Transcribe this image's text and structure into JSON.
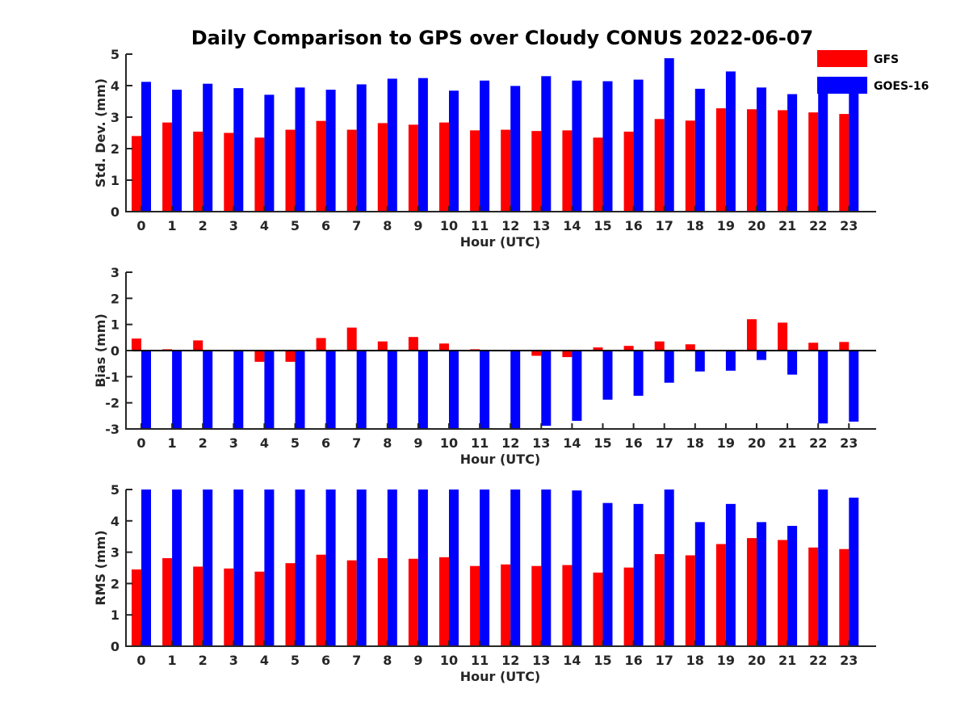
{
  "title": "Daily Comparison to GPS over Cloudy CONUS 2022-06-07",
  "legend": [
    {
      "name": "GFS",
      "color": "#ff0000"
    },
    {
      "name": "GOES-16",
      "color": "#0000ff"
    }
  ],
  "chart_data": [
    {
      "type": "bar",
      "xlabel": "Hour (UTC)",
      "ylabel": "Std. Dev. (mm)",
      "ylim": [
        0,
        5
      ],
      "yticks": [
        0,
        1,
        2,
        3,
        4,
        5
      ],
      "categories": [
        "0",
        "1",
        "2",
        "3",
        "4",
        "5",
        "6",
        "7",
        "8",
        "9",
        "10",
        "11",
        "12",
        "13",
        "14",
        "15",
        "16",
        "17",
        "18",
        "19",
        "20",
        "21",
        "22",
        "23"
      ],
      "series": [
        {
          "name": "GFS",
          "color": "#ff0000",
          "values": [
            2.4,
            2.83,
            2.54,
            2.5,
            2.35,
            2.6,
            2.88,
            2.6,
            2.81,
            2.76,
            2.83,
            2.58,
            2.6,
            2.56,
            2.58,
            2.35,
            2.54,
            2.94,
            2.89,
            3.28,
            3.25,
            3.22,
            3.15,
            3.1
          ]
        },
        {
          "name": "GOES-16",
          "color": "#0000ff",
          "values": [
            4.12,
            3.87,
            4.06,
            3.92,
            3.71,
            3.94,
            3.87,
            4.04,
            4.22,
            4.24,
            3.84,
            4.16,
            3.99,
            4.3,
            4.16,
            4.14,
            4.19,
            4.87,
            3.9,
            4.45,
            3.94,
            3.73,
            4.17,
            4.0
          ]
        }
      ],
      "grid": false
    },
    {
      "type": "bar",
      "xlabel": "Hour (UTC)",
      "ylabel": "Bias (mm)",
      "ylim": [
        -3,
        3
      ],
      "yticks": [
        -3,
        -2,
        -1,
        0,
        1,
        2,
        3
      ],
      "categories": [
        "0",
        "1",
        "2",
        "3",
        "4",
        "5",
        "6",
        "7",
        "8",
        "9",
        "10",
        "11",
        "12",
        "13",
        "14",
        "15",
        "16",
        "17",
        "18",
        "19",
        "20",
        "21",
        "22",
        "23"
      ],
      "series": [
        {
          "name": "GFS",
          "color": "#ff0000",
          "values": [
            0.46,
            0.05,
            0.39,
            0.0,
            -0.43,
            -0.43,
            0.48,
            0.88,
            0.35,
            0.52,
            0.27,
            0.05,
            0.0,
            -0.2,
            -0.25,
            0.12,
            0.18,
            0.35,
            0.24,
            0.0,
            1.2,
            1.07,
            0.3,
            0.33
          ]
        },
        {
          "name": "GOES-16",
          "color": "#0000ff",
          "values": [
            -3.5,
            -3.5,
            -3.5,
            -3.5,
            -3.5,
            -3.5,
            -3.5,
            -3.5,
            -3.5,
            -3.5,
            -3.5,
            -3.5,
            -3.5,
            -2.88,
            -2.69,
            -1.88,
            -1.73,
            -1.23,
            -0.8,
            -0.77,
            -0.36,
            -0.92,
            -2.79,
            -2.72
          ]
        }
      ],
      "grid": false
    },
    {
      "type": "bar",
      "xlabel": "Hour (UTC)",
      "ylabel": "RMS (mm)",
      "ylim": [
        0,
        5
      ],
      "yticks": [
        0,
        1,
        2,
        3,
        4,
        5
      ],
      "categories": [
        "0",
        "1",
        "2",
        "3",
        "4",
        "5",
        "6",
        "7",
        "8",
        "9",
        "10",
        "11",
        "12",
        "13",
        "14",
        "15",
        "16",
        "17",
        "18",
        "19",
        "20",
        "21",
        "22",
        "23"
      ],
      "series": [
        {
          "name": "GFS",
          "color": "#ff0000",
          "values": [
            2.45,
            2.81,
            2.54,
            2.48,
            2.38,
            2.65,
            2.92,
            2.74,
            2.81,
            2.79,
            2.84,
            2.56,
            2.61,
            2.56,
            2.59,
            2.35,
            2.51,
            2.94,
            2.9,
            3.26,
            3.45,
            3.39,
            3.15,
            3.1
          ]
        },
        {
          "name": "GOES-16",
          "color": "#0000ff",
          "values": [
            5.5,
            5.5,
            5.5,
            5.5,
            5.5,
            5.5,
            5.5,
            5.5,
            5.5,
            5.5,
            5.5,
            5.5,
            5.5,
            5.5,
            4.97,
            4.57,
            4.54,
            5.5,
            3.96,
            4.54,
            3.96,
            3.84,
            5.5,
            4.74
          ]
        }
      ],
      "grid": false
    }
  ]
}
